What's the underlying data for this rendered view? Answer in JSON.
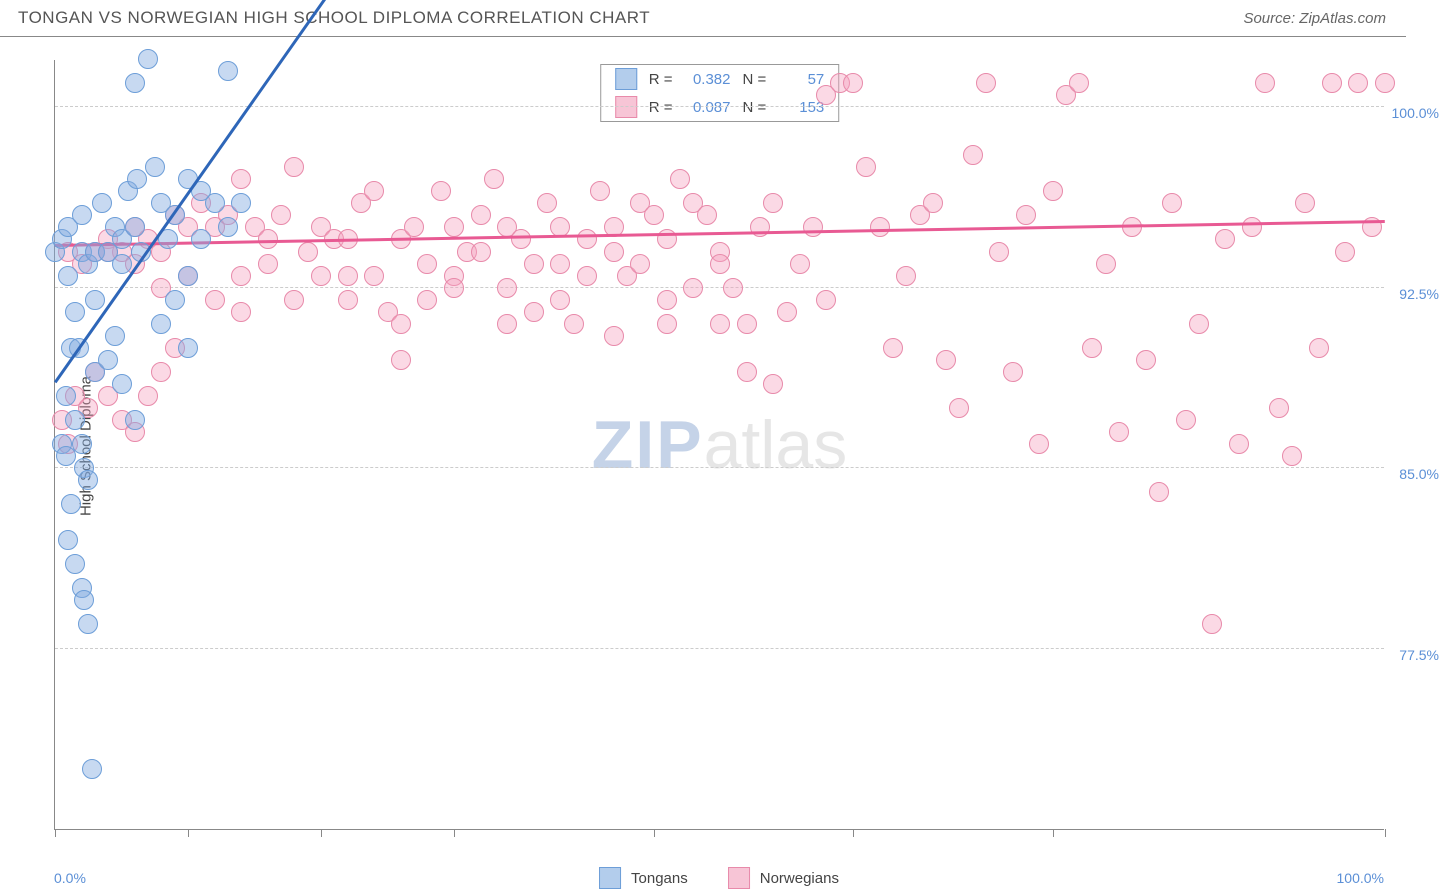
{
  "title": "TONGAN VS NORWEGIAN HIGH SCHOOL DIPLOMA CORRELATION CHART",
  "source": "Source: ZipAtlas.com",
  "ylabel": "High School Diploma",
  "watermark": {
    "zip": "ZIP",
    "atlas": "atlas"
  },
  "x_axis": {
    "min_label": "0.0%",
    "max_label": "100.0%",
    "min": 0,
    "max": 100,
    "ticks": [
      0,
      10,
      20,
      30,
      45,
      60,
      75,
      100
    ]
  },
  "y_axis": {
    "min": 70,
    "max": 102,
    "gridlines": [
      77.5,
      85.0,
      92.5,
      100.0
    ],
    "labels": [
      "77.5%",
      "85.0%",
      "92.5%",
      "100.0%"
    ]
  },
  "series": {
    "tongans": {
      "label": "Tongans",
      "color_fill": "rgba(130,170,225,0.45)",
      "color_stroke": "#6d9ed8",
      "swatch_fill": "#b3cdec",
      "swatch_stroke": "#6d9ed8",
      "marker_radius": 10,
      "R": "0.382",
      "N": "57",
      "trend": {
        "x1": 0,
        "y1": 88.5,
        "x2": 21,
        "y2": 105,
        "color": "#2e66b8",
        "width": 2.5
      },
      "points": [
        [
          0,
          94
        ],
        [
          0.5,
          94.5
        ],
        [
          1,
          93
        ],
        [
          1,
          95
        ],
        [
          1.2,
          90
        ],
        [
          1.5,
          91.5
        ],
        [
          2,
          94
        ],
        [
          2,
          95.5
        ],
        [
          2.5,
          93.5
        ],
        [
          3,
          94
        ],
        [
          3,
          92
        ],
        [
          3.5,
          96
        ],
        [
          4,
          94
        ],
        [
          4.5,
          95
        ],
        [
          5,
          94.5
        ],
        [
          5,
          93.5
        ],
        [
          5.5,
          96.5
        ],
        [
          6,
          95
        ],
        [
          6.2,
          97
        ],
        [
          6.5,
          94
        ],
        [
          7,
          102
        ],
        [
          7.5,
          97.5
        ],
        [
          8,
          96
        ],
        [
          8.5,
          94.5
        ],
        [
          9,
          95.5
        ],
        [
          10,
          97
        ],
        [
          10,
          93
        ],
        [
          11,
          94.5
        ],
        [
          12,
          96
        ],
        [
          13,
          101.5
        ],
        [
          13,
          95
        ],
        [
          0.8,
          88
        ],
        [
          1.5,
          87
        ],
        [
          2,
          86
        ],
        [
          2.2,
          85
        ],
        [
          2.5,
          84.5
        ],
        [
          1.8,
          90
        ],
        [
          3,
          89
        ],
        [
          4,
          89.5
        ],
        [
          4.5,
          90.5
        ],
        [
          1,
          82
        ],
        [
          1.5,
          81
        ],
        [
          2,
          80
        ],
        [
          2.2,
          79.5
        ],
        [
          2.5,
          78.5
        ],
        [
          2.8,
          72.5
        ],
        [
          5,
          88.5
        ],
        [
          6,
          87
        ],
        [
          0.5,
          86
        ],
        [
          0.8,
          85.5
        ],
        [
          1.2,
          83.5
        ],
        [
          8,
          91
        ],
        [
          9,
          92
        ],
        [
          10,
          90
        ],
        [
          11,
          96.5
        ],
        [
          14,
          96
        ],
        [
          6,
          101
        ]
      ]
    },
    "norwegians": {
      "label": "Norwegians",
      "color_fill": "rgba(245,160,190,0.40)",
      "color_stroke": "#e88aaa",
      "swatch_fill": "#f7c5d6",
      "swatch_stroke": "#e88aaa",
      "marker_radius": 10,
      "R": "0.087",
      "N": "153",
      "trend": {
        "x1": 0,
        "y1": 94.2,
        "x2": 100,
        "y2": 95.2,
        "color": "#e85a93",
        "width": 2.5
      },
      "points": [
        [
          1,
          94
        ],
        [
          2,
          93.5
        ],
        [
          3,
          94
        ],
        [
          4,
          94.5
        ],
        [
          5,
          94
        ],
        [
          6,
          95
        ],
        [
          7,
          94.5
        ],
        [
          8,
          94
        ],
        [
          9,
          95.5
        ],
        [
          10,
          95
        ],
        [
          11,
          96
        ],
        [
          12,
          95
        ],
        [
          13,
          95.5
        ],
        [
          14,
          97
        ],
        [
          15,
          95
        ],
        [
          16,
          94.5
        ],
        [
          17,
          95.5
        ],
        [
          18,
          97.5
        ],
        [
          19,
          94
        ],
        [
          20,
          95
        ],
        [
          21,
          94.5
        ],
        [
          22,
          93
        ],
        [
          23,
          96
        ],
        [
          24,
          96.5
        ],
        [
          25,
          91.5
        ],
        [
          26,
          94.5
        ],
        [
          27,
          95
        ],
        [
          28,
          92
        ],
        [
          29,
          96.5
        ],
        [
          30,
          95
        ],
        [
          31,
          94
        ],
        [
          32,
          95.5
        ],
        [
          33,
          97
        ],
        [
          34,
          95
        ],
        [
          35,
          94.5
        ],
        [
          36,
          93.5
        ],
        [
          37,
          96
        ],
        [
          38,
          95
        ],
        [
          39,
          91
        ],
        [
          40,
          94.5
        ],
        [
          41,
          96.5
        ],
        [
          42,
          95
        ],
        [
          43,
          93
        ],
        [
          44,
          96
        ],
        [
          45,
          95.5
        ],
        [
          46,
          94.5
        ],
        [
          47,
          97
        ],
        [
          48,
          96
        ],
        [
          49,
          95.5
        ],
        [
          50,
          94
        ],
        [
          51,
          92.5
        ],
        [
          52,
          89
        ],
        [
          53,
          95
        ],
        [
          54,
          96
        ],
        [
          55,
          91.5
        ],
        [
          56,
          93.5
        ],
        [
          57,
          95
        ],
        [
          58,
          100.5
        ],
        [
          59,
          101
        ],
        [
          60,
          101
        ],
        [
          61,
          97.5
        ],
        [
          62,
          95
        ],
        [
          63,
          90
        ],
        [
          64,
          93
        ],
        [
          65,
          95.5
        ],
        [
          66,
          96
        ],
        [
          67,
          89.5
        ],
        [
          68,
          87.5
        ],
        [
          69,
          98
        ],
        [
          70,
          101
        ],
        [
          71,
          94
        ],
        [
          72,
          89
        ],
        [
          73,
          95.5
        ],
        [
          74,
          86
        ],
        [
          75,
          96.5
        ],
        [
          76,
          100.5
        ],
        [
          77,
          101
        ],
        [
          78,
          90
        ],
        [
          79,
          93.5
        ],
        [
          80,
          86.5
        ],
        [
          81,
          95
        ],
        [
          82,
          89.5
        ],
        [
          83,
          84
        ],
        [
          84,
          96
        ],
        [
          85,
          87
        ],
        [
          86,
          91
        ],
        [
          87,
          78.5
        ],
        [
          88,
          94.5
        ],
        [
          89,
          86
        ],
        [
          90,
          95
        ],
        [
          91,
          101
        ],
        [
          92,
          87.5
        ],
        [
          93,
          85.5
        ],
        [
          94,
          96
        ],
        [
          95,
          90
        ],
        [
          96,
          101
        ],
        [
          97,
          94
        ],
        [
          98,
          101
        ],
        [
          99,
          95
        ],
        [
          100,
          101
        ],
        [
          14,
          93
        ],
        [
          22,
          92
        ],
        [
          26,
          89.5
        ],
        [
          30,
          93
        ],
        [
          34,
          91
        ],
        [
          38,
          93.5
        ],
        [
          42,
          90.5
        ],
        [
          46,
          92
        ],
        [
          50,
          91
        ],
        [
          54,
          88.5
        ],
        [
          58,
          92
        ],
        [
          0.5,
          87
        ],
        [
          1,
          86
        ],
        [
          1.5,
          88
        ],
        [
          2.5,
          87.5
        ],
        [
          3,
          89
        ],
        [
          4,
          88
        ],
        [
          5,
          87
        ],
        [
          6,
          86.5
        ],
        [
          7,
          88
        ],
        [
          8,
          89
        ],
        [
          9,
          90
        ],
        [
          4,
          94
        ],
        [
          6,
          93.5
        ],
        [
          8,
          92.5
        ],
        [
          10,
          93
        ],
        [
          12,
          92
        ],
        [
          14,
          91.5
        ],
        [
          16,
          93.5
        ],
        [
          18,
          92
        ],
        [
          20,
          93
        ],
        [
          22,
          94.5
        ],
        [
          24,
          93
        ],
        [
          26,
          91
        ],
        [
          28,
          93.5
        ],
        [
          30,
          92.5
        ],
        [
          32,
          94
        ],
        [
          34,
          92.5
        ],
        [
          36,
          91.5
        ],
        [
          38,
          92
        ],
        [
          40,
          93
        ],
        [
          42,
          94
        ],
        [
          44,
          93.5
        ],
        [
          46,
          91
        ],
        [
          48,
          92.5
        ],
        [
          50,
          93.5
        ],
        [
          52,
          91
        ]
      ]
    }
  }
}
